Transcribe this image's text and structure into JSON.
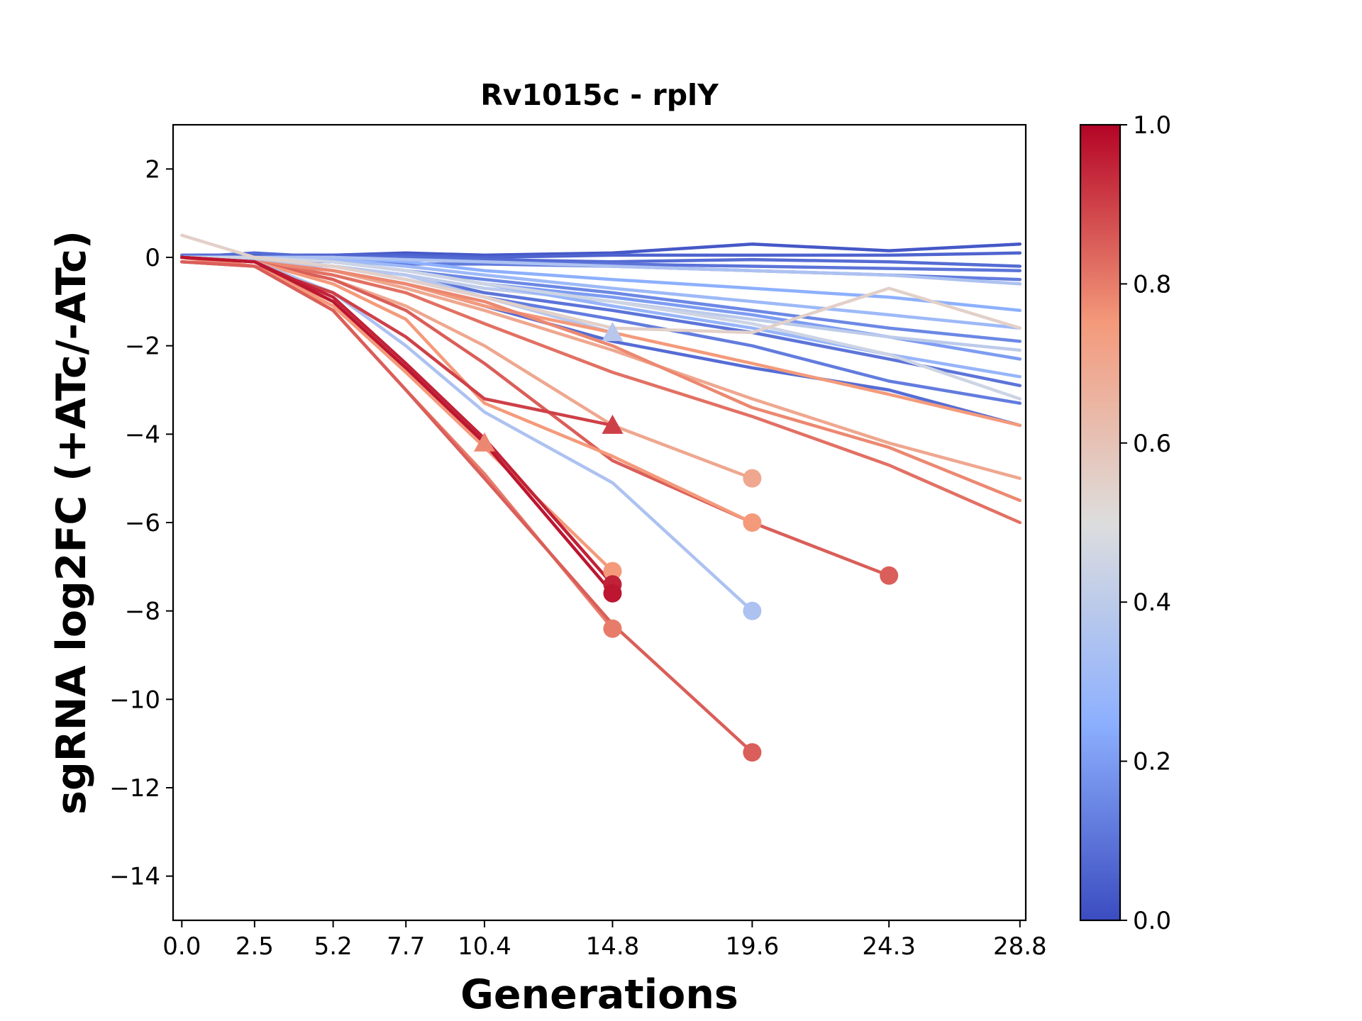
{
  "chart_data": {
    "type": "line",
    "title": "Rv1015c - rplY",
    "xlabel": "Generations",
    "ylabel": "sgRNA log2FC (+ATc/-ATc)",
    "xlim": [
      -0.3,
      29.0
    ],
    "ylim": [
      -15,
      3
    ],
    "x_ticks": [
      0.0,
      2.5,
      5.2,
      7.7,
      10.4,
      14.8,
      19.6,
      24.3,
      28.8
    ],
    "x_tick_labels": [
      "0.0",
      "2.5",
      "5.2",
      "7.7",
      "10.4",
      "14.8",
      "19.6",
      "24.3",
      "28.8"
    ],
    "y_ticks": [
      2,
      0,
      -2,
      -4,
      -6,
      -8,
      -10,
      -12,
      -14
    ],
    "y_tick_labels": [
      "2",
      "0",
      "−2",
      "−4",
      "−6",
      "−8",
      "−10",
      "−12",
      "−14"
    ],
    "grid": false,
    "legend": "none",
    "colorbar": {
      "colormap": "coolwarm",
      "range": [
        0.0,
        1.0
      ],
      "ticks": [
        0.0,
        0.2,
        0.4,
        0.6,
        0.8,
        1.0
      ],
      "tick_labels": [
        "0.0",
        "0.2",
        "0.4",
        "0.6",
        "0.8",
        "1.0"
      ]
    },
    "series": [
      {
        "color_value": 0.03,
        "x": [
          0,
          2.5,
          5.2,
          7.7,
          10.4,
          14.8,
          19.6,
          24.3,
          28.8
        ],
        "y": [
          0.05,
          0.05,
          0.05,
          0.1,
          0.05,
          0.1,
          0.3,
          0.15,
          0.3
        ]
      },
      {
        "color_value": 0.06,
        "x": [
          0,
          2.5,
          5.2,
          7.7,
          10.4,
          14.8,
          19.6,
          24.3,
          28.8
        ],
        "y": [
          0.0,
          0.0,
          0.05,
          0.05,
          0.0,
          0.05,
          0.05,
          0.05,
          0.1
        ]
      },
      {
        "color_value": 0.08,
        "x": [
          0,
          2.5,
          5.2,
          7.7,
          10.4,
          14.8,
          19.6,
          24.3,
          28.8
        ],
        "y": [
          0.0,
          0.1,
          0.0,
          0.0,
          -0.05,
          -0.1,
          -0.05,
          -0.1,
          -0.2
        ]
      },
      {
        "color_value": 0.1,
        "x": [
          0,
          2.5,
          5.2,
          7.7,
          10.4,
          14.8,
          19.6,
          24.3,
          28.8
        ],
        "y": [
          0.05,
          0.0,
          -0.05,
          -0.05,
          -0.1,
          -0.15,
          -0.2,
          -0.25,
          -0.3
        ]
      },
      {
        "color_value": 0.12,
        "x": [
          0,
          2.5,
          5.2,
          7.7,
          10.4,
          14.8,
          19.6,
          24.3,
          28.8
        ],
        "y": [
          0.0,
          -0.05,
          -0.1,
          -0.15,
          -0.15,
          -0.2,
          -0.3,
          -0.4,
          -0.5
        ]
      },
      {
        "color_value": 0.15,
        "x": [
          0,
          2.5,
          5.2,
          7.7,
          10.4,
          14.8,
          19.6,
          24.3,
          28.8
        ],
        "y": [
          0.0,
          0.0,
          -0.1,
          -0.3,
          -0.5,
          -0.8,
          -1.2,
          -1.6,
          -1.9
        ]
      },
      {
        "color_value": 0.1,
        "x": [
          0,
          2.5,
          5.2,
          7.7,
          10.4,
          14.8,
          19.6,
          24.3,
          28.8
        ],
        "y": [
          0.0,
          -0.1,
          -0.2,
          -0.4,
          -0.8,
          -1.2,
          -1.7,
          -2.3,
          -2.9
        ]
      },
      {
        "color_value": 0.08,
        "x": [
          0,
          2.5,
          5.2,
          7.7,
          10.4,
          14.8,
          19.6,
          24.3,
          28.8
        ],
        "y": [
          0.0,
          -0.1,
          -0.3,
          -0.6,
          -1.1,
          -1.9,
          -2.5,
          -3.0,
          -3.8
        ]
      },
      {
        "color_value": 0.12,
        "x": [
          0,
          2.5,
          5.2,
          7.7,
          10.4,
          14.8,
          19.6,
          24.3,
          28.8
        ],
        "y": [
          0.0,
          -0.05,
          -0.2,
          -0.5,
          -0.9,
          -1.4,
          -2.0,
          -2.8,
          -3.3
        ]
      },
      {
        "color_value": 0.2,
        "x": [
          0,
          2.5,
          5.2,
          7.7,
          10.4,
          14.8,
          19.6,
          24.3,
          28.8
        ],
        "y": [
          0.0,
          0.0,
          -0.1,
          -0.3,
          -0.6,
          -0.9,
          -1.3,
          -1.8,
          -2.3
        ]
      },
      {
        "color_value": 0.25,
        "x": [
          0,
          2.5,
          5.2,
          7.7,
          10.4,
          14.8,
          19.6,
          24.3,
          28.8
        ],
        "y": [
          0.0,
          0.0,
          0.0,
          -0.1,
          -0.3,
          -0.5,
          -0.7,
          -0.9,
          -1.2
        ]
      },
      {
        "color_value": 0.3,
        "x": [
          0,
          2.5,
          5.2,
          7.7,
          10.4,
          14.8,
          19.6,
          24.3,
          28.8
        ],
        "y": [
          0.0,
          0.0,
          -0.05,
          -0.2,
          -0.4,
          -0.7,
          -1.0,
          -1.3,
          -1.6
        ]
      },
      {
        "color_value": 0.35,
        "x": [
          0,
          2.5,
          5.2,
          7.7,
          10.4,
          14.8,
          19.6,
          24.3,
          28.8
        ],
        "y": [
          0.0,
          0.0,
          0.0,
          -0.05,
          -0.1,
          -0.2,
          -0.3,
          -0.4,
          -0.6
        ]
      },
      {
        "color_value": 0.4,
        "x": [
          0,
          2.5,
          5.2,
          7.7,
          10.4,
          14.8,
          19.6,
          24.3,
          28.8
        ],
        "y": [
          0.0,
          -0.05,
          -0.2,
          -0.4,
          -0.7,
          -1.0,
          -1.4,
          -1.8,
          -2.1
        ]
      },
      {
        "color_value": 0.28,
        "x": [
          0,
          2.5,
          5.2,
          7.7,
          10.4,
          14.8,
          19.6,
          24.3,
          28.8
        ],
        "y": [
          0.0,
          0.0,
          -0.1,
          -0.3,
          -0.6,
          -1.1,
          -1.6,
          -2.2,
          -2.7
        ]
      },
      {
        "color_value": 0.45,
        "x": [
          0,
          2.5,
          5.2,
          7.7,
          10.4,
          14.8,
          19.6,
          24.3,
          28.8
        ],
        "y": [
          0.0,
          0.0,
          -0.1,
          -0.3,
          -0.6,
          -1.0,
          -1.5,
          -2.2,
          -3.2
        ]
      },
      {
        "color_value": 0.38,
        "x": [
          0,
          2.5,
          5.2,
          7.7,
          10.4,
          14.8
        ],
        "y": [
          0.0,
          -0.1,
          -0.2,
          -0.4,
          -0.9,
          -1.7
        ],
        "end_marker": "triangle"
      },
      {
        "color_value": 0.55,
        "x": [
          0,
          2.5,
          5.2,
          7.7,
          10.4,
          14.8,
          19.6,
          24.3,
          28.8
        ],
        "y": [
          0.5,
          0.0,
          -0.2,
          -0.5,
          -0.9,
          -1.6,
          -1.7,
          -0.7,
          -1.6
        ]
      },
      {
        "color_value": 0.75,
        "x": [
          0,
          2.5,
          5.2,
          7.7,
          10.4,
          14.8,
          19.6,
          24.3,
          28.8
        ],
        "y": [
          0.0,
          -0.1,
          -0.3,
          -0.6,
          -1.1,
          -1.7,
          -2.4,
          -3.1,
          -3.8
        ]
      },
      {
        "color_value": 0.82,
        "x": [
          0,
          2.5,
          5.2,
          7.7,
          10.4,
          14.8,
          19.6,
          24.3,
          28.8
        ],
        "y": [
          0.0,
          -0.1,
          -0.4,
          -0.8,
          -1.5,
          -2.6,
          -3.6,
          -4.7,
          -6.0
        ]
      },
      {
        "color_value": 0.7,
        "x": [
          0,
          2.5,
          5.2,
          7.7,
          10.4,
          14.8,
          19.6,
          24.3,
          28.8
        ],
        "y": [
          0.0,
          -0.1,
          -0.3,
          -0.7,
          -1.2,
          -2.1,
          -3.2,
          -4.2,
          -5.0
        ]
      },
      {
        "color_value": 0.78,
        "x": [
          0,
          2.5,
          5.2,
          7.7,
          10.4,
          14.8,
          19.6,
          24.3,
          28.8
        ],
        "y": [
          0.0,
          -0.1,
          -0.3,
          -0.6,
          -1.0,
          -2.0,
          -3.4,
          -4.3,
          -5.5
        ]
      },
      {
        "color_value": 0.7,
        "x": [
          0,
          2.5,
          5.2,
          7.7,
          10.4,
          14.8,
          19.6
        ],
        "y": [
          0.0,
          -0.1,
          -0.5,
          -1.1,
          -2.0,
          -3.8,
          -5.0
        ],
        "end_marker": "circle"
      },
      {
        "color_value": 0.85,
        "x": [
          0,
          2.5,
          5.2,
          7.7,
          10.4,
          14.8,
          19.6,
          24.3
        ],
        "y": [
          0.0,
          -0.1,
          -0.5,
          -1.2,
          -2.4,
          -4.6,
          -6.0,
          -7.2
        ],
        "end_marker": "circle"
      },
      {
        "color_value": 0.75,
        "x": [
          0,
          2.5,
          5.2,
          7.7,
          10.4,
          14.8,
          19.6
        ],
        "y": [
          0.0,
          -0.1,
          -0.6,
          -1.4,
          -3.3,
          -4.5,
          -6.0
        ],
        "end_marker": "circle"
      },
      {
        "color_value": 0.35,
        "x": [
          0,
          2.5,
          5.2,
          7.7,
          10.4,
          14.8,
          19.6
        ],
        "y": [
          0.0,
          -0.1,
          -0.8,
          -2.0,
          -3.5,
          -5.1,
          -8.0
        ],
        "end_marker": "circle"
      },
      {
        "color_value": 0.9,
        "x": [
          0,
          2.5,
          5.2,
          7.7,
          10.4,
          14.8
        ],
        "y": [
          0.0,
          -0.2,
          -0.8,
          -1.8,
          -3.2,
          -3.8
        ],
        "end_marker": "triangle"
      },
      {
        "color_value": 0.78,
        "x": [
          0,
          2.5,
          5.2,
          7.7,
          10.4
        ],
        "y": [
          0.0,
          -0.2,
          -1.0,
          -2.6,
          -4.2
        ],
        "end_marker": "triangle"
      },
      {
        "color_value": 0.75,
        "x": [
          0,
          2.5,
          5.2,
          7.7,
          10.4,
          14.8
        ],
        "y": [
          -0.1,
          -0.2,
          -1.1,
          -2.6,
          -4.3,
          -7.1
        ],
        "end_marker": "circle"
      },
      {
        "color_value": 0.95,
        "x": [
          0,
          2.5,
          5.2,
          7.7,
          10.4,
          14.8
        ],
        "y": [
          0.0,
          -0.1,
          -0.9,
          -2.4,
          -4.1,
          -7.4
        ],
        "end_marker": "circle"
      },
      {
        "color_value": 0.97,
        "x": [
          0,
          2.5,
          5.2,
          7.7,
          10.4,
          14.8
        ],
        "y": [
          0.0,
          -0.1,
          -1.0,
          -2.5,
          -4.2,
          -7.6
        ],
        "end_marker": "circle"
      },
      {
        "color_value": 0.8,
        "x": [
          0,
          2.5,
          5.2,
          7.7,
          10.4,
          14.8
        ],
        "y": [
          -0.1,
          -0.2,
          -1.2,
          -3.0,
          -4.9,
          -8.4
        ],
        "end_marker": "circle"
      },
      {
        "color_value": 0.85,
        "x": [
          0,
          2.5,
          5.2,
          7.7,
          10.4,
          14.8,
          19.6
        ],
        "y": [
          -0.1,
          -0.2,
          -1.2,
          -3.0,
          -5.0,
          -8.3,
          -11.2
        ],
        "end_marker": "circle"
      }
    ]
  }
}
